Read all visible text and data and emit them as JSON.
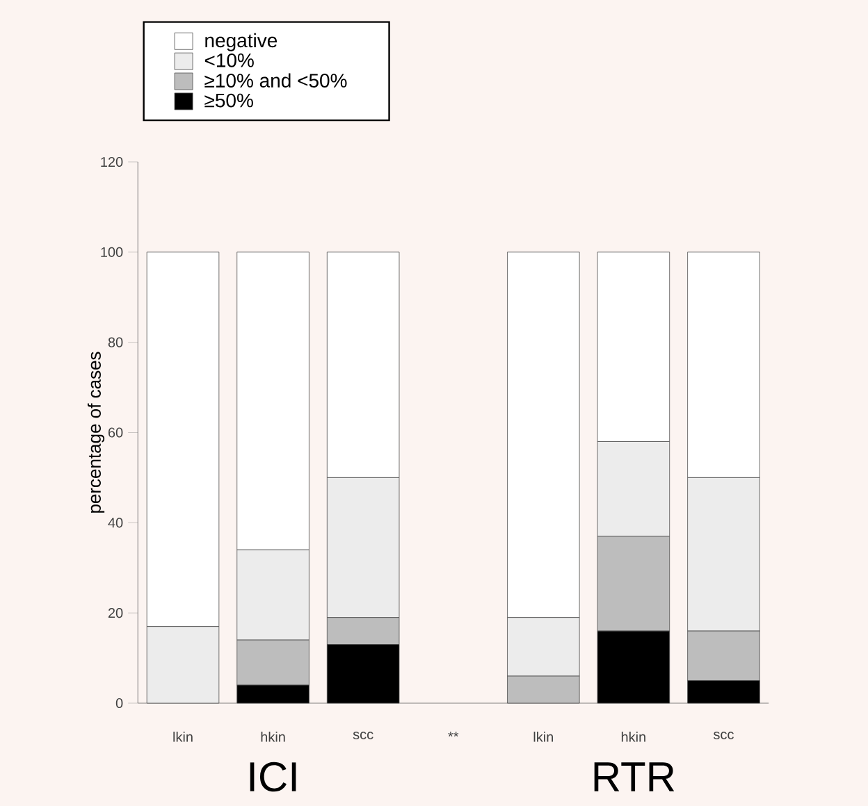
{
  "chart_data": {
    "type": "bar",
    "stacked": true,
    "ylabel": "percentage of cases",
    "categories": [
      "lkin",
      "hkin",
      "scc",
      "**",
      "lkin",
      "hkin",
      "scc"
    ],
    "ylim": [
      0,
      120
    ],
    "yticks": [
      0,
      20,
      40,
      60,
      80,
      100,
      120
    ],
    "legend": "top left",
    "annotations": [
      "ICI",
      "RTR"
    ],
    "series": [
      {
        "name": "≥50%",
        "color": "#000000",
        "values": [
          0,
          4,
          13,
          null,
          0,
          16,
          5
        ]
      },
      {
        "name": "≥10% and <50%",
        "color": "#bdbdbd",
        "values": [
          0,
          10,
          6,
          null,
          6,
          21,
          11
        ]
      },
      {
        "name": "<10%",
        "color": "#ececec",
        "values": [
          17,
          20,
          31,
          null,
          13,
          21,
          34
        ]
      },
      {
        "name": "negative",
        "color": "#ffffff",
        "values": [
          83,
          66,
          50,
          null,
          81,
          42,
          50
        ]
      }
    ]
  }
}
